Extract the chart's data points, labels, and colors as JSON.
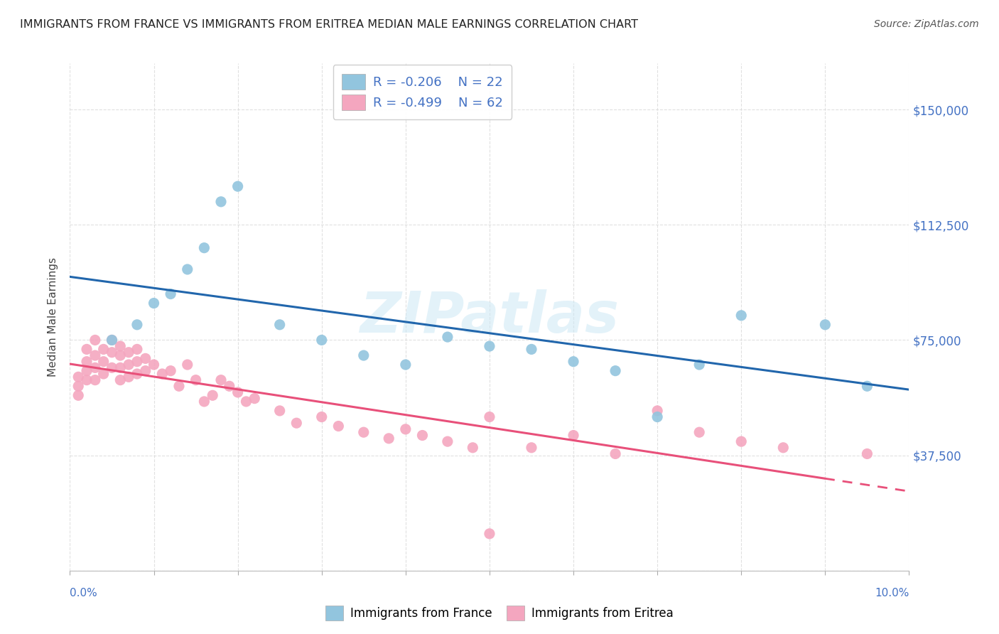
{
  "title": "IMMIGRANTS FROM FRANCE VS IMMIGRANTS FROM ERITREA MEDIAN MALE EARNINGS CORRELATION CHART",
  "source": "Source: ZipAtlas.com",
  "ylabel": "Median Male Earnings",
  "watermark": "ZIPatlas",
  "legend_france_R": "R = -0.206",
  "legend_france_N": "N = 22",
  "legend_eritrea_R": "R = -0.499",
  "legend_eritrea_N": "N = 62",
  "france_color": "#92c5de",
  "eritrea_color": "#f4a6bf",
  "france_line_color": "#2166ac",
  "eritrea_line_color": "#e8507a",
  "background_color": "#ffffff",
  "grid_color": "#d9d9d9",
  "xlim": [
    0.0,
    0.1
  ],
  "ylim": [
    0,
    165000
  ],
  "yticks": [
    0,
    37500,
    75000,
    112500,
    150000
  ],
  "ytick_labels": [
    "",
    "$37,500",
    "$75,000",
    "$112,500",
    "$150,000"
  ],
  "xtick_positions": [
    0.0,
    0.01,
    0.02,
    0.03,
    0.04,
    0.05,
    0.06,
    0.07,
    0.08,
    0.09,
    0.1
  ],
  "france_x": [
    0.005,
    0.008,
    0.01,
    0.012,
    0.014,
    0.016,
    0.018,
    0.02,
    0.025,
    0.03,
    0.035,
    0.04,
    0.045,
    0.05,
    0.055,
    0.06,
    0.065,
    0.07,
    0.075,
    0.08,
    0.09,
    0.095
  ],
  "france_y": [
    75000,
    80000,
    87000,
    90000,
    98000,
    105000,
    120000,
    125000,
    80000,
    75000,
    70000,
    67000,
    76000,
    73000,
    72000,
    68000,
    65000,
    50000,
    67000,
    83000,
    80000,
    60000
  ],
  "eritrea_x": [
    0.001,
    0.001,
    0.001,
    0.002,
    0.002,
    0.002,
    0.002,
    0.003,
    0.003,
    0.003,
    0.003,
    0.004,
    0.004,
    0.004,
    0.005,
    0.005,
    0.005,
    0.006,
    0.006,
    0.006,
    0.006,
    0.007,
    0.007,
    0.007,
    0.008,
    0.008,
    0.008,
    0.009,
    0.009,
    0.01,
    0.011,
    0.012,
    0.013,
    0.014,
    0.015,
    0.016,
    0.017,
    0.018,
    0.019,
    0.02,
    0.021,
    0.022,
    0.025,
    0.027,
    0.03,
    0.032,
    0.035,
    0.038,
    0.04,
    0.042,
    0.045,
    0.048,
    0.05,
    0.055,
    0.06,
    0.065,
    0.07,
    0.075,
    0.08,
    0.085,
    0.095,
    0.05
  ],
  "eritrea_y": [
    63000,
    60000,
    57000,
    72000,
    68000,
    65000,
    62000,
    75000,
    70000,
    66000,
    62000,
    72000,
    68000,
    64000,
    75000,
    71000,
    66000,
    73000,
    70000,
    66000,
    62000,
    71000,
    67000,
    63000,
    72000,
    68000,
    64000,
    69000,
    65000,
    67000,
    64000,
    65000,
    60000,
    67000,
    62000,
    55000,
    57000,
    62000,
    60000,
    58000,
    55000,
    56000,
    52000,
    48000,
    50000,
    47000,
    45000,
    43000,
    46000,
    44000,
    42000,
    40000,
    50000,
    40000,
    44000,
    38000,
    52000,
    45000,
    42000,
    40000,
    38000,
    12000
  ]
}
